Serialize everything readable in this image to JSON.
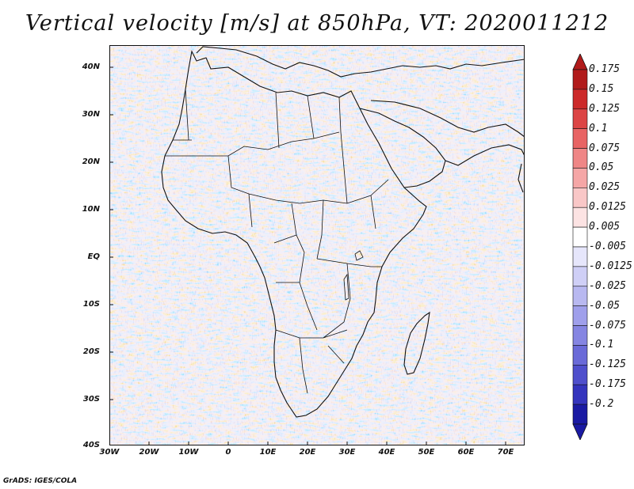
{
  "title": "Vertical velocity [m/s] at 850hPa, VT: 2020011212",
  "map": {
    "lat_labels": [
      "40N",
      "30N",
      "20N",
      "10N",
      "EQ",
      "10S",
      "20S",
      "30S",
      "40S"
    ],
    "lon_labels": [
      "30W",
      "20W",
      "10W",
      "0",
      "10E",
      "20E",
      "30E",
      "40E",
      "50E",
      "60E",
      "70E"
    ]
  },
  "legend": {
    "labels": [
      "0.175",
      "0.15",
      "0.125",
      "0.1",
      "0.075",
      "0.05",
      "0.025",
      "0.0125",
      "0.005",
      "-0.005",
      "-0.0125",
      "-0.025",
      "-0.05",
      "-0.075",
      "-0.1",
      "-0.125",
      "-0.175",
      "-0.2"
    ],
    "colors": [
      "#b11b1b",
      "#cc2a2a",
      "#dc4545",
      "#e86464",
      "#ef8686",
      "#f5a6a6",
      "#f9c7c7",
      "#fce3e3",
      "#ffffff",
      "#e6e6fb",
      "#cfcff6",
      "#b8b8f0",
      "#9f9feb",
      "#8585e2",
      "#6a6ad8",
      "#4f4fcc",
      "#3434bd",
      "#1a1aa3"
    ]
  },
  "colors": {
    "positive": "#e35d5d",
    "negative": "#7a7ae0",
    "coast": "#111111"
  },
  "credit": "GrADS: IGES/COLA"
}
